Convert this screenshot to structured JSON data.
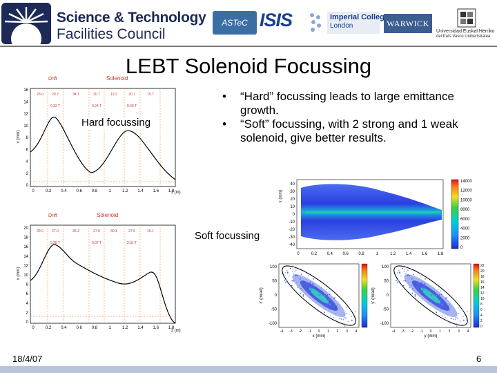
{
  "header": {
    "org_line1": "Science & Technology",
    "org_line2": "Facilities Council",
    "partner_astec": "ASTeC",
    "partner_isis": "ISIS",
    "partner_imperial_1": "Imperial College",
    "partner_imperial_2": "London",
    "partner_warwick": "WARWICK",
    "partner_ehu_1": "Universidad  Euskal Herriko",
    "partner_ehu_2": "del País Vasco   Unibertsitatea"
  },
  "slide": {
    "title": "LEBT Solenoid Focussing",
    "bullets": [
      "“Hard” focussing leads to large emittance growth.",
      "“Soft” focussing, with 2 strong and 1 weak solenoid, give better results."
    ],
    "bullet_char": "•",
    "hard_label": "Hard focussing",
    "soft_label": "Soft focussing"
  },
  "footer": {
    "date": "18/4/07",
    "page": "6"
  },
  "plots": {
    "hard": {
      "drift_label": "Drift",
      "solenoid_label": "Solenoid",
      "ylabel": "x (mm)",
      "xlabel": "z (m)",
      "yticks": [
        "16",
        "14",
        "12",
        "10",
        "8",
        "6",
        "4",
        "2",
        "0"
      ],
      "xticks": [
        "0",
        "0.2",
        "0.4",
        "0.6",
        "0.8",
        "1",
        "1.2",
        "1.4",
        "1.6",
        "1.8"
      ],
      "segments": [
        "23.0",
        "20.7",
        "34.1",
        "20.7",
        "19.2",
        "20.7",
        "15.7"
      ],
      "fields": [
        "0.32 T",
        "0.24 T",
        "0.40 T"
      ]
    },
    "soft": {
      "drift_label": "Drift",
      "solenoid_label": "Solenoid",
      "ylabel": "x (mm)",
      "xlabel": "z (m)",
      "yticks": [
        "20",
        "18",
        "16",
        "14",
        "12",
        "10",
        "8",
        "6",
        "4",
        "2",
        "0"
      ],
      "xticks": [
        "0",
        "0.2",
        "0.4",
        "0.6",
        "0.8",
        "1",
        "1.2",
        "1.4",
        "1.6",
        "1.8"
      ],
      "segments": [
        "29.0",
        "27.0",
        "36.3",
        "27.0",
        "30.3",
        "27.0",
        "15.1"
      ],
      "fields": [
        "0.28 T",
        "0.07 T",
        "2.31 T"
      ]
    },
    "density": {
      "ylabel": "x (mm)",
      "yticks": [
        "40",
        "30",
        "20",
        "10",
        "0",
        "-10",
        "-20",
        "-30",
        "-40"
      ],
      "xticks": [
        "0",
        "0.2",
        "0.4",
        "0.6",
        "0.8",
        "1",
        "1.2",
        "1.4",
        "1.6",
        "1.8"
      ],
      "xlabel": "z (m)",
      "colorbar": [
        "14000",
        "12000",
        "10000",
        "8000",
        "6000",
        "4000",
        "2000",
        "0"
      ]
    },
    "phase_x": {
      "ylabel": "x' (mrad)",
      "xlabel": "x (mm)",
      "yticks": [
        "100",
        "50",
        "0",
        "-50",
        "-100"
      ],
      "xticks": [
        "-4",
        "-3",
        "-2",
        "-1",
        "0",
        "1",
        "2",
        "3",
        "4"
      ],
      "colorbar": [
        "22",
        "20",
        "18",
        "16",
        "14",
        "12",
        "10",
        "8",
        "6",
        "4",
        "2",
        "0"
      ]
    },
    "phase_y": {
      "ylabel": "y' (mrad)",
      "xlabel": "y (mm)",
      "yticks": [
        "100",
        "50",
        "0",
        "-50",
        "-100"
      ],
      "xticks": [
        "-4",
        "-3",
        "-2",
        "-1",
        "0",
        "1",
        "2",
        "3",
        "4"
      ],
      "colorbar": [
        "22",
        "20",
        "18",
        "16",
        "14",
        "12",
        "10",
        "8",
        "6",
        "4",
        "2",
        "0"
      ]
    }
  },
  "colors": {
    "orange_grid": "#e8a05a",
    "axis_red": "#c0392b",
    "beam_blue": "#1a2ccf",
    "brand": "#1d2a57"
  }
}
